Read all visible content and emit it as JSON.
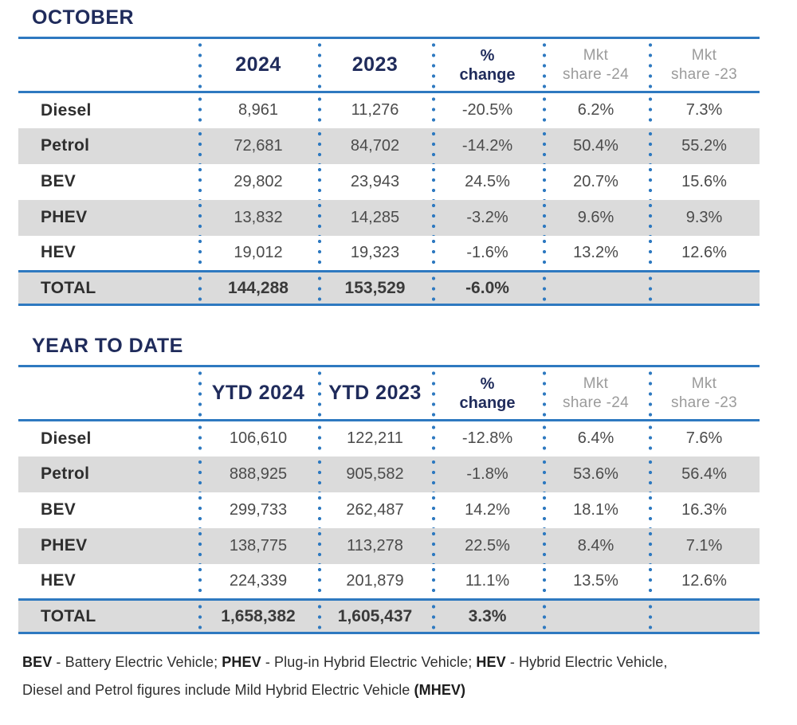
{
  "colors": {
    "navy": "#1f2b5b",
    "line_blue": "#2e79c0",
    "header_gray": "#9b9b9b",
    "row_stripe": "#dbdbdb",
    "value_text": "#4b4b4b"
  },
  "tables": [
    {
      "title": "OCTOBER",
      "columns": [
        {
          "line1": "",
          "style": ""
        },
        {
          "line1": "2024",
          "style": "year"
        },
        {
          "line1": "2023",
          "style": "year"
        },
        {
          "line1": "%",
          "line2": "change",
          "style": "pct"
        },
        {
          "line1": "Mkt",
          "line2": "share -24",
          "style": "mkt"
        },
        {
          "line1": "Mkt",
          "line2": "share -23",
          "style": "mkt"
        }
      ],
      "rows": [
        {
          "label": "Diesel",
          "values": [
            "8,961",
            "11,276",
            "-20.5%",
            "6.2%",
            "7.3%"
          ],
          "shaded": false
        },
        {
          "label": "Petrol",
          "values": [
            "72,681",
            "84,702",
            "-14.2%",
            "50.4%",
            "55.2%"
          ],
          "shaded": true
        },
        {
          "label": "BEV",
          "values": [
            "29,802",
            "23,943",
            "24.5%",
            "20.7%",
            "15.6%"
          ],
          "shaded": false
        },
        {
          "label": "PHEV",
          "values": [
            "13,832",
            "14,285",
            "-3.2%",
            "9.6%",
            "9.3%"
          ],
          "shaded": true
        },
        {
          "label": "HEV",
          "values": [
            "19,012",
            "19,323",
            "-1.6%",
            "13.2%",
            "12.6%"
          ],
          "shaded": false
        }
      ],
      "total": {
        "label": "TOTAL",
        "values": [
          "144,288",
          "153,529",
          "-6.0%",
          "",
          ""
        ]
      }
    },
    {
      "title": "YEAR TO DATE",
      "columns": [
        {
          "line1": "",
          "style": ""
        },
        {
          "line1": "YTD 2024",
          "style": "year"
        },
        {
          "line1": "YTD 2023",
          "style": "year"
        },
        {
          "line1": "%",
          "line2": "change",
          "style": "pct"
        },
        {
          "line1": "Mkt",
          "line2": "share -24",
          "style": "mkt"
        },
        {
          "line1": "Mkt",
          "line2": "share -23",
          "style": "mkt"
        }
      ],
      "rows": [
        {
          "label": "Diesel",
          "values": [
            "106,610",
            "122,211",
            "-12.8%",
            "6.4%",
            "7.6%"
          ],
          "shaded": false
        },
        {
          "label": "Petrol",
          "values": [
            "888,925",
            "905,582",
            "-1.8%",
            "53.6%",
            "56.4%"
          ],
          "shaded": true
        },
        {
          "label": "BEV",
          "values": [
            "299,733",
            "262,487",
            "14.2%",
            "18.1%",
            "16.3%"
          ],
          "shaded": false
        },
        {
          "label": "PHEV",
          "values": [
            "138,775",
            "113,278",
            "22.5%",
            "8.4%",
            "7.1%"
          ],
          "shaded": true
        },
        {
          "label": "HEV",
          "values": [
            "224,339",
            "201,879",
            "11.1%",
            "13.5%",
            "12.6%"
          ],
          "shaded": false
        }
      ],
      "total": {
        "label": "TOTAL",
        "values": [
          "1,658,382",
          "1,605,437",
          "3.3%",
          "",
          ""
        ]
      }
    }
  ],
  "footnote": {
    "lines": [
      [
        {
          "text": "BEV",
          "bold": true
        },
        {
          "text": " - Battery Electric Vehicle; ",
          "bold": false
        },
        {
          "text": "PHEV",
          "bold": true
        },
        {
          "text": " - Plug-in Hybrid Electric Vehicle; ",
          "bold": false
        },
        {
          "text": "HEV",
          "bold": true
        },
        {
          "text": " - Hybrid Electric Vehicle,",
          "bold": false
        }
      ],
      [
        {
          "text": "Diesel and Petrol figures include Mild Hybrid Electric Vehicle ",
          "bold": false
        },
        {
          "text": "(MHEV)",
          "bold": true
        }
      ]
    ]
  }
}
